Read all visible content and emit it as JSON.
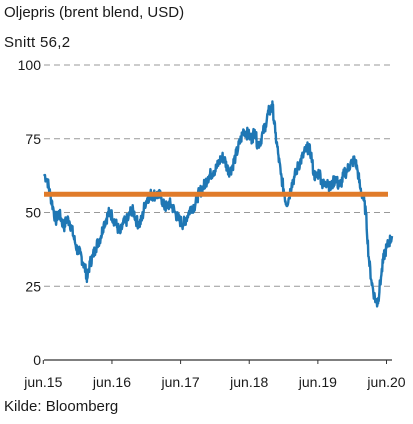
{
  "title": "Oljepris (brent blend, USD)",
  "subtitle": "Snitt 56,2",
  "source": "Kilde: Bloomberg",
  "chart_data": {
    "type": "line",
    "title": "Oljepris (brent blend, USD)",
    "ylim": [
      0,
      100
    ],
    "yticks": [
      0,
      25,
      50,
      75,
      100
    ],
    "xlim": [
      2015.43,
      2020.5
    ],
    "xticks": [
      {
        "label": "jun.15",
        "x": 2015.42
      },
      {
        "label": "jun.16",
        "x": 2016.42
      },
      {
        "label": "jun.17",
        "x": 2017.42
      },
      {
        "label": "jun.18",
        "x": 2018.42
      },
      {
        "label": "jun.19",
        "x": 2019.42
      },
      {
        "label": "jun.20",
        "x": 2020.42
      }
    ],
    "grid": "horizontal dashed",
    "colors": {
      "price": "#1f77b4",
      "average": "#e07b2a",
      "grid": "#999999",
      "axis": "#333333"
    },
    "average": {
      "value": 56.2
    },
    "series": [
      {
        "values": [
          [
            2015.43,
            63
          ],
          [
            2015.48,
            61
          ],
          [
            2015.52,
            56
          ],
          [
            2015.56,
            52
          ],
          [
            2015.6,
            47
          ],
          [
            2015.64,
            50
          ],
          [
            2015.68,
            48
          ],
          [
            2015.72,
            45
          ],
          [
            2015.76,
            48
          ],
          [
            2015.8,
            47
          ],
          [
            2015.84,
            44
          ],
          [
            2015.88,
            40
          ],
          [
            2015.92,
            37
          ],
          [
            2015.96,
            36
          ],
          [
            2016.0,
            33
          ],
          [
            2016.04,
            30
          ],
          [
            2016.06,
            27.5
          ],
          [
            2016.1,
            33
          ],
          [
            2016.14,
            35
          ],
          [
            2016.18,
            38
          ],
          [
            2016.22,
            40
          ],
          [
            2016.26,
            42
          ],
          [
            2016.3,
            46
          ],
          [
            2016.34,
            48
          ],
          [
            2016.38,
            50
          ],
          [
            2016.42,
            49
          ],
          [
            2016.46,
            47
          ],
          [
            2016.5,
            45
          ],
          [
            2016.54,
            43
          ],
          [
            2016.58,
            46
          ],
          [
            2016.62,
            47
          ],
          [
            2016.66,
            48
          ],
          [
            2016.7,
            51
          ],
          [
            2016.74,
            50
          ],
          [
            2016.78,
            47
          ],
          [
            2016.82,
            46
          ],
          [
            2016.86,
            48
          ],
          [
            2016.9,
            53
          ],
          [
            2016.94,
            55
          ],
          [
            2016.98,
            56
          ],
          [
            2017.02,
            56
          ],
          [
            2017.06,
            56
          ],
          [
            2017.1,
            56
          ],
          [
            2017.14,
            55
          ],
          [
            2017.18,
            52
          ],
          [
            2017.22,
            52
          ],
          [
            2017.26,
            53
          ],
          [
            2017.3,
            52
          ],
          [
            2017.34,
            50
          ],
          [
            2017.38,
            48
          ],
          [
            2017.42,
            47
          ],
          [
            2017.46,
            46
          ],
          [
            2017.5,
            48
          ],
          [
            2017.54,
            50
          ],
          [
            2017.58,
            52
          ],
          [
            2017.62,
            52
          ],
          [
            2017.66,
            55
          ],
          [
            2017.7,
            57
          ],
          [
            2017.74,
            58
          ],
          [
            2017.78,
            60
          ],
          [
            2017.82,
            62
          ],
          [
            2017.86,
            63
          ],
          [
            2017.9,
            64
          ],
          [
            2017.94,
            65
          ],
          [
            2017.98,
            67
          ],
          [
            2018.02,
            69
          ],
          [
            2018.06,
            68
          ],
          [
            2018.1,
            65
          ],
          [
            2018.14,
            64
          ],
          [
            2018.18,
            66
          ],
          [
            2018.22,
            69
          ],
          [
            2018.26,
            72
          ],
          [
            2018.3,
            75
          ],
          [
            2018.34,
            78
          ],
          [
            2018.38,
            77
          ],
          [
            2018.42,
            76
          ],
          [
            2018.46,
            75
          ],
          [
            2018.5,
            78
          ],
          [
            2018.54,
            73
          ],
          [
            2018.58,
            74
          ],
          [
            2018.62,
            77
          ],
          [
            2018.66,
            80
          ],
          [
            2018.7,
            84
          ],
          [
            2018.74,
            85
          ],
          [
            2018.76,
            86
          ],
          [
            2018.8,
            77
          ],
          [
            2018.84,
            70
          ],
          [
            2018.88,
            63
          ],
          [
            2018.92,
            58
          ],
          [
            2018.96,
            53
          ],
          [
            2019.0,
            55
          ],
          [
            2019.04,
            60
          ],
          [
            2019.08,
            62
          ],
          [
            2019.12,
            65
          ],
          [
            2019.16,
            67
          ],
          [
            2019.2,
            69
          ],
          [
            2019.24,
            71
          ],
          [
            2019.28,
            72
          ],
          [
            2019.32,
            70
          ],
          [
            2019.36,
            63
          ],
          [
            2019.4,
            62
          ],
          [
            2019.44,
            64
          ],
          [
            2019.48,
            60
          ],
          [
            2019.52,
            59
          ],
          [
            2019.56,
            61
          ],
          [
            2019.6,
            58
          ],
          [
            2019.64,
            60
          ],
          [
            2019.68,
            62
          ],
          [
            2019.72,
            59
          ],
          [
            2019.76,
            60
          ],
          [
            2019.8,
            63
          ],
          [
            2019.84,
            64
          ],
          [
            2019.88,
            66
          ],
          [
            2019.92,
            67
          ],
          [
            2019.96,
            68
          ],
          [
            2020.0,
            64
          ],
          [
            2020.04,
            58
          ],
          [
            2020.08,
            55
          ],
          [
            2020.12,
            50
          ],
          [
            2020.16,
            35
          ],
          [
            2020.2,
            27
          ],
          [
            2020.24,
            22
          ],
          [
            2020.28,
            19
          ],
          [
            2020.3,
            21
          ],
          [
            2020.34,
            28
          ],
          [
            2020.38,
            35
          ],
          [
            2020.42,
            38
          ],
          [
            2020.46,
            40
          ],
          [
            2020.5,
            42
          ]
        ]
      }
    ]
  }
}
